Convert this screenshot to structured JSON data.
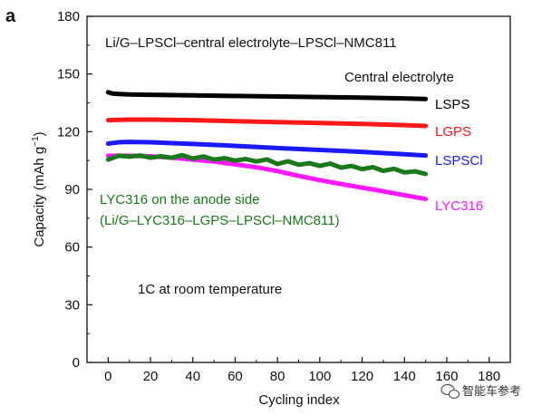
{
  "panel_letter": "a",
  "watermark": "智能车参考",
  "chart_data": {
    "type": "line",
    "title": "Li/G–LPSCl–central electrolyte–LPSCl–NMC811",
    "legend_title": "Central electrolyte",
    "xlabel": "Cycling index",
    "ylabel_main": "Capacity (mAh g",
    "ylabel_sup": "−1",
    "ylabel_close": ")",
    "xlim": [
      -10,
      190
    ],
    "ylim": [
      0,
      180
    ],
    "xticks": [
      0,
      20,
      40,
      60,
      80,
      100,
      120,
      140,
      160,
      180
    ],
    "yticks": [
      0,
      30,
      60,
      90,
      120,
      150,
      180
    ],
    "grid": false,
    "annotations": {
      "anode_line1": "LYC316 on the anode side",
      "anode_line2": "(Li/G–LYC316–LGPS–LPSCl–NMC811)",
      "condition": "1C at room temperature"
    },
    "colors": {
      "LSPS": "#000000",
      "LGPS": "#ff1a1a",
      "LSPSCl": "#1a1aff",
      "LYC316": "#ff1aff",
      "anode": "#1a7a1a"
    },
    "series": [
      {
        "name": "LSPS",
        "color": "#000000",
        "x": [
          0,
          2,
          5,
          10,
          20,
          40,
          60,
          80,
          100,
          120,
          140,
          150
        ],
        "y": [
          140.5,
          139.8,
          139.6,
          139.4,
          139.2,
          138.9,
          138.6,
          138.3,
          138.0,
          137.7,
          137.3,
          137.0
        ]
      },
      {
        "name": "LGPS",
        "color": "#ff1a1a",
        "x": [
          0,
          10,
          20,
          40,
          60,
          80,
          100,
          120,
          140,
          150
        ],
        "y": [
          126.0,
          126.3,
          126.3,
          126.0,
          125.5,
          125.0,
          124.5,
          124.0,
          123.4,
          123.0
        ]
      },
      {
        "name": "LSPSCl",
        "color": "#1a1aff",
        "x": [
          0,
          5,
          10,
          20,
          40,
          60,
          80,
          100,
          120,
          140,
          150
        ],
        "y": [
          113.8,
          114.5,
          114.7,
          114.5,
          113.6,
          112.6,
          111.5,
          110.5,
          109.5,
          108.3,
          107.6
        ]
      },
      {
        "name": "LYC316",
        "color": "#ff1aff",
        "x": [
          0,
          10,
          20,
          30,
          40,
          50,
          60,
          70,
          80,
          90,
          100,
          110,
          120,
          130,
          140,
          150
        ],
        "y": [
          107.5,
          107.5,
          107.2,
          106.5,
          105.5,
          104.5,
          103.0,
          101.5,
          99.5,
          97.0,
          94.8,
          92.8,
          90.9,
          89.0,
          87.0,
          85.0
        ]
      },
      {
        "name": "LYC316 on the anode side",
        "color": "#1a7a1a",
        "x": [
          0,
          5,
          10,
          15,
          20,
          25,
          30,
          35,
          40,
          45,
          50,
          55,
          60,
          65,
          70,
          75,
          80,
          85,
          90,
          95,
          100,
          105,
          110,
          115,
          120,
          125,
          130,
          135,
          140,
          145,
          150
        ],
        "y": [
          105.5,
          107.5,
          107.0,
          107.6,
          106.5,
          107.2,
          106.4,
          107.8,
          106.0,
          107.1,
          105.5,
          106.2,
          105.0,
          105.8,
          104.5,
          105.6,
          103.2,
          104.6,
          102.8,
          103.6,
          102.2,
          103.4,
          101.3,
          102.2,
          100.5,
          101.6,
          99.6,
          100.7,
          98.8,
          99.4,
          98.0
        ]
      }
    ]
  }
}
